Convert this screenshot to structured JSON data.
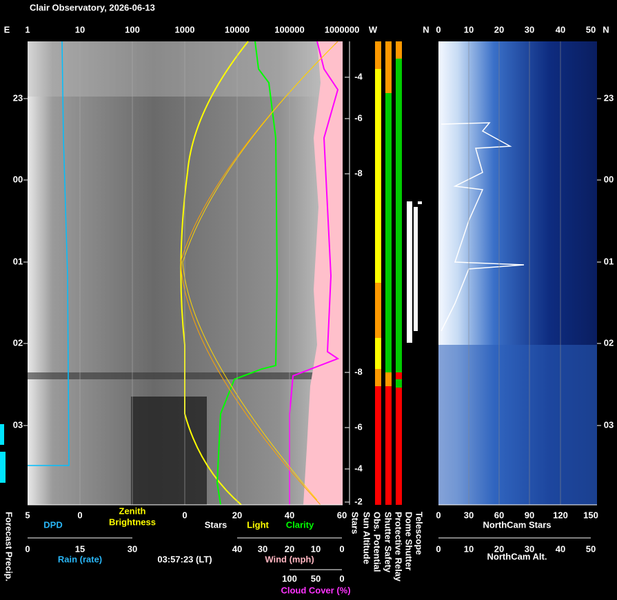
{
  "title": "Clair Observatory, 2026-06-13",
  "top_axis": {
    "left_label": "E",
    "ticks": [
      "1",
      "10",
      "100",
      "1000",
      "10000",
      "100000",
      "1000000"
    ],
    "sun_label": "W",
    "status_label": "N",
    "northcam_ticks": [
      "0",
      "10",
      "20",
      "30",
      "40",
      "50"
    ],
    "right_label": "N"
  },
  "time_ticks": [
    "23",
    "00",
    "01",
    "02",
    "03"
  ],
  "sun_altitude_ticks": [
    "-4",
    "-6",
    "-8",
    "-8",
    "-6",
    "-4",
    "-2"
  ],
  "row1": {
    "ticks": [
      "5",
      "0",
      "0",
      "20",
      "40",
      "60"
    ],
    "northcam_ticks": [
      "0",
      "30",
      "60",
      "90",
      "120",
      "150"
    ],
    "dpd": "DPD",
    "zenith_brightness": [
      "Zenith",
      "Brightness"
    ],
    "stars": "Stars",
    "light": "Light",
    "clarity": "Clarity",
    "northcam_stars": "NorthCam Stars"
  },
  "row2": {
    "rain_ticks": [
      "0",
      "15",
      "30"
    ],
    "wind_ticks": [
      "40",
      "30",
      "20",
      "10",
      "0"
    ],
    "northcam_alt_ticks": [
      "0",
      "10",
      "20",
      "30",
      "40",
      "50"
    ],
    "rain": "Rain (rate)",
    "time": "03:57:23 (LT)",
    "wind": "Wind (mph)",
    "northcam_alt": "NorthCam Alt."
  },
  "row3": {
    "cloud_ticks": [
      "100",
      "50",
      "0"
    ],
    "cloud": "Cloud Cover (%)"
  },
  "vertical_labels": [
    "Forecast Precip.",
    "Stars",
    "Sun Altitude",
    "Obs. Potential",
    "Shutter Safety",
    "Protective Relay",
    "Dome Shutter",
    "Telescope"
  ]
}
